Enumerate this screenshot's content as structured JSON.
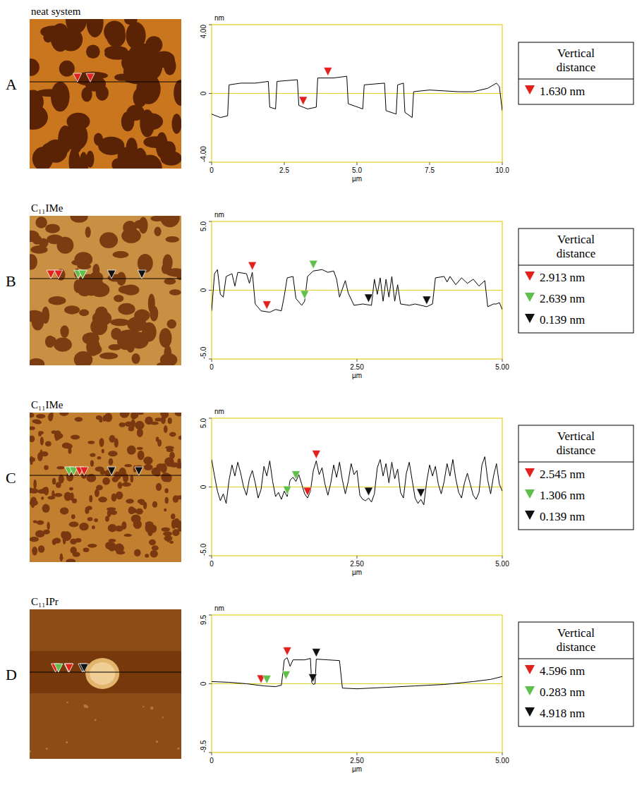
{
  "chart_data": [
    {
      "panel": "A",
      "type": "line",
      "title": "neat system",
      "xlabel": "µm",
      "ylabel": "nm",
      "color": "#000000",
      "grid": false,
      "x": [
        0,
        0.3,
        0.55,
        0.6,
        1.0,
        1.5,
        1.95,
        2.0,
        2.2,
        2.25,
        2.95,
        3.0,
        3.3,
        3.6,
        3.65,
        4.2,
        4.65,
        4.7,
        5.2,
        5.25,
        5.95,
        6.0,
        6.35,
        6.4,
        6.6,
        6.65,
        6.9,
        6.95,
        7.5,
        8.5,
        9.0,
        9.5,
        9.8,
        9.9,
        10
      ],
      "values": [
        -1.2,
        -1.4,
        -1.3,
        0.5,
        0.6,
        0.6,
        0.7,
        -0.8,
        -0.9,
        0.7,
        0.8,
        -0.7,
        -0.9,
        -0.8,
        0.9,
        0.9,
        1.0,
        -0.6,
        -0.9,
        0.5,
        0.6,
        -1.0,
        -1.2,
        0.5,
        0.6,
        -1.1,
        -1.4,
        0.1,
        0.2,
        0.1,
        0.1,
        0.3,
        0.6,
        0.4,
        -1.0
      ],
      "xlim": [
        0,
        10
      ],
      "xticks": [
        0,
        2.5,
        {
          "value": 5,
          "label": "5.0"
        },
        {
          "value": 7.5,
          "label": "7.5"
        },
        {
          "value": 10,
          "label": "10.0"
        }
      ],
      "ylim": [
        -4,
        4
      ],
      "yticks": [
        {
          "value": -4,
          "label": "-4.00"
        },
        0,
        {
          "value": 4,
          "label": "4.00"
        }
      ],
      "markers": [
        {
          "x": 3.15,
          "y": -0.8,
          "color": "#e3211c"
        },
        {
          "x": 4.0,
          "y": 0.9,
          "color": "#e3211c"
        }
      ],
      "table": {
        "title": "Vertical distance",
        "rows": [
          {
            "color": "#e3211c",
            "value": 1.63,
            "label": "1.630 nm"
          }
        ]
      }
    },
    {
      "panel": "B",
      "type": "line",
      "title": "C₁₁IMe",
      "xlabel": "µm",
      "ylabel": "nm",
      "color": "#000000",
      "grid": false,
      "x": [
        0,
        0.05,
        0.1,
        0.15,
        0.2,
        0.25,
        0.35,
        0.4,
        0.45,
        0.6,
        0.65,
        0.7,
        0.75,
        0.85,
        1.0,
        1.1,
        1.2,
        1.25,
        1.3,
        1.4,
        1.45,
        1.55,
        1.6,
        1.65,
        1.75,
        1.9,
        2.0,
        2.1,
        2.15,
        2.2,
        2.3,
        2.35,
        2.45,
        2.6,
        2.75,
        2.8,
        2.85,
        2.9,
        2.95,
        3.0,
        3.05,
        3.1,
        3.15,
        3.2,
        3.25,
        3.4,
        3.5,
        3.6,
        3.7,
        3.8,
        3.85,
        4.0,
        4.05,
        4.1,
        4.2,
        4.3,
        4.4,
        4.5,
        4.6,
        4.7,
        4.75,
        4.85,
        4.9,
        4.95,
        5.0
      ],
      "values": [
        -1.5,
        1.2,
        1.5,
        -0.3,
        -0.5,
        1.0,
        1.2,
        0.3,
        1.3,
        1.2,
        0.5,
        1.3,
        -1.0,
        -1.5,
        -1.6,
        -1.4,
        -1.5,
        -0.4,
        0.9,
        1.0,
        -0.6,
        -1.1,
        -0.8,
        1.0,
        1.4,
        1.5,
        1.3,
        1.4,
        0.8,
        -0.5,
        0.7,
        -0.2,
        -1.1,
        -1.0,
        -1.1,
        0.8,
        -0.3,
        0.9,
        -0.8,
        0.8,
        -0.5,
        1.0,
        -0.8,
        0.4,
        -1.0,
        -1.1,
        -1.0,
        -1.1,
        -1.2,
        -1.0,
        0.9,
        1.0,
        0.6,
        1.0,
        0.4,
        0.9,
        0.5,
        0.8,
        0.3,
        0.7,
        -1.2,
        -1.0,
        -1.0,
        -0.9,
        -1.4
      ],
      "xlim": [
        0,
        5
      ],
      "xticks": [
        0,
        {
          "value": 2.5,
          "label": "2.50"
        },
        {
          "value": 5,
          "label": "5.00"
        }
      ],
      "ylim": [
        -5,
        5
      ],
      "yticks": [
        {
          "value": -5,
          "label": "-5.0"
        },
        0,
        {
          "value": 5,
          "label": "5.0"
        }
      ],
      "markers": [
        {
          "x": 0.7,
          "y": 1.3,
          "color": "#e3211c"
        },
        {
          "x": 0.95,
          "y": -1.55,
          "color": "#e3211c"
        },
        {
          "x": 1.6,
          "y": -0.8,
          "color": "#5fbf4a"
        },
        {
          "x": 1.75,
          "y": 1.4,
          "color": "#5fbf4a"
        },
        {
          "x": 2.7,
          "y": -1.05,
          "color": "#111111"
        },
        {
          "x": 3.7,
          "y": -1.2,
          "color": "#111111"
        }
      ],
      "table": {
        "title": "Vertical distance",
        "rows": [
          {
            "color": "#e3211c",
            "value": 2.913,
            "label": "2.913 nm"
          },
          {
            "color": "#5fbf4a",
            "value": 2.639,
            "label": "2.639 nm"
          },
          {
            "color": "#111111",
            "value": 0.139,
            "label": "0.139 nm"
          }
        ]
      }
    },
    {
      "panel": "C",
      "type": "line",
      "title": "C₁₁IMe",
      "xlabel": "µm",
      "ylabel": "nm",
      "color": "#000000",
      "grid": false,
      "x": [
        0,
        0.05,
        0.1,
        0.15,
        0.2,
        0.25,
        0.3,
        0.35,
        0.4,
        0.45,
        0.5,
        0.55,
        0.6,
        0.65,
        0.7,
        0.75,
        0.8,
        0.85,
        0.9,
        0.95,
        1.0,
        1.05,
        1.1,
        1.15,
        1.2,
        1.25,
        1.3,
        1.35,
        1.4,
        1.45,
        1.5,
        1.55,
        1.6,
        1.65,
        1.7,
        1.75,
        1.8,
        1.85,
        1.9,
        1.95,
        2.0,
        2.05,
        2.1,
        2.15,
        2.2,
        2.25,
        2.3,
        2.35,
        2.4,
        2.45,
        2.5,
        2.55,
        2.6,
        2.65,
        2.7,
        2.75,
        2.8,
        2.85,
        2.9,
        2.95,
        3.0,
        3.05,
        3.1,
        3.15,
        3.2,
        3.25,
        3.3,
        3.35,
        3.4,
        3.45,
        3.5,
        3.55,
        3.6,
        3.65,
        3.7,
        3.75,
        3.8,
        3.85,
        3.9,
        3.95,
        4.0,
        4.05,
        4.1,
        4.15,
        4.2,
        4.25,
        4.3,
        4.35,
        4.4,
        4.45,
        4.5,
        4.55,
        4.6,
        4.65,
        4.7,
        4.75,
        4.8,
        4.85,
        4.9,
        4.95,
        5.0
      ],
      "values": [
        2.0,
        0.8,
        -0.3,
        -1.0,
        -0.5,
        -1.2,
        0.5,
        1.6,
        0.8,
        1.8,
        1.0,
        0.0,
        -0.6,
        0.6,
        1.2,
        0.3,
        -0.8,
        -0.2,
        1.5,
        0.8,
        1.9,
        0.4,
        -0.7,
        -0.4,
        -0.9,
        -0.3,
        -0.7,
        0.5,
        0.7,
        0.4,
        0.9,
        0.2,
        -0.5,
        -0.8,
        -0.3,
        1.2,
        1.9,
        0.9,
        1.4,
        0.2,
        -0.6,
        0.3,
        1.6,
        0.7,
        1.8,
        0.5,
        -0.5,
        0.4,
        1.7,
        0.9,
        1.2,
        -0.6,
        -0.9,
        -1.0,
        -0.8,
        -1.1,
        -0.5,
        1.4,
        2.0,
        0.8,
        1.7,
        0.3,
        1.8,
        0.6,
        1.3,
        -0.4,
        -0.8,
        1.0,
        1.8,
        0.5,
        -0.8,
        -1.2,
        -0.9,
        -1.3,
        0.4,
        1.6,
        0.8,
        1.5,
        0.2,
        -0.5,
        0.4,
        1.7,
        0.8,
        2.0,
        0.6,
        -0.4,
        -0.8,
        0.3,
        1.0,
        0.2,
        -0.6,
        -0.9,
        -0.4,
        1.6,
        2.2,
        0.5,
        -0.5,
        0.8,
        1.7,
        0.2,
        -0.3
      ],
      "xlim": [
        0,
        5
      ],
      "xticks": [
        0,
        {
          "value": 2.5,
          "label": "2.50"
        },
        {
          "value": 5,
          "label": "5.00"
        }
      ],
      "ylim": [
        -5,
        5
      ],
      "yticks": [
        {
          "value": -5,
          "label": "-5.0"
        },
        0,
        {
          "value": 5,
          "label": "5.0"
        }
      ],
      "markers": [
        {
          "x": 1.3,
          "y": -0.7,
          "color": "#5fbf4a"
        },
        {
          "x": 1.45,
          "y": 0.4,
          "color": "#5fbf4a"
        },
        {
          "x": 1.65,
          "y": -0.8,
          "color": "#e3211c"
        },
        {
          "x": 1.8,
          "y": 1.9,
          "color": "#e3211c"
        },
        {
          "x": 2.7,
          "y": -0.8,
          "color": "#111111"
        },
        {
          "x": 3.6,
          "y": -0.9,
          "color": "#111111"
        }
      ],
      "table": {
        "title": "Vertical distance",
        "rows": [
          {
            "color": "#e3211c",
            "value": 2.545,
            "label": "2.545 nm"
          },
          {
            "color": "#5fbf4a",
            "value": 1.306,
            "label": "1.306 nm"
          },
          {
            "color": "#111111",
            "value": 0.139,
            "label": "0.139 nm"
          }
        ]
      }
    },
    {
      "panel": "D",
      "type": "line",
      "title": "C₁₁IPr",
      "xlabel": "µm",
      "ylabel": "nm",
      "color": "#000000",
      "grid": false,
      "x": [
        0,
        0.3,
        0.6,
        0.9,
        1.1,
        1.2,
        1.25,
        1.3,
        1.35,
        1.4,
        1.6,
        1.7,
        1.72,
        1.75,
        1.78,
        1.8,
        2.0,
        2.2,
        2.25,
        2.5,
        3.0,
        3.5,
        4.0,
        4.5,
        4.8,
        5.0
      ],
      "values": [
        0.3,
        0.2,
        0.0,
        -0.3,
        -0.4,
        -0.2,
        3.3,
        3.6,
        2.4,
        3.3,
        3.3,
        3.5,
        0.2,
        -0.1,
        0.0,
        3.4,
        3.3,
        3.2,
        -0.6,
        -0.7,
        -0.5,
        -0.3,
        -0.1,
        0.3,
        0.6,
        1.0
      ],
      "xlim": [
        0,
        5
      ],
      "xticks": [
        0,
        {
          "value": 2.5,
          "label": "2.50"
        },
        {
          "value": 5,
          "label": "5.00"
        }
      ],
      "ylim": [
        -9.5,
        9.5
      ],
      "yticks": [
        -9.5,
        0,
        9.5
      ],
      "markers": [
        {
          "x": 0.85,
          "y": -0.25,
          "color": "#e3211c"
        },
        {
          "x": 0.95,
          "y": -0.3,
          "color": "#5fbf4a"
        },
        {
          "x": 1.28,
          "y": 0.3,
          "color": "#5fbf4a"
        },
        {
          "x": 1.3,
          "y": 3.6,
          "color": "#e3211c"
        },
        {
          "x": 1.74,
          "y": -0.1,
          "color": "#111111"
        },
        {
          "x": 1.8,
          "y": 3.4,
          "color": "#111111"
        }
      ],
      "table": {
        "title": "Vertical distance",
        "rows": [
          {
            "color": "#e3211c",
            "value": 4.596,
            "label": "4.596 nm"
          },
          {
            "color": "#5fbf4a",
            "value": 0.283,
            "label": "0.283 nm"
          },
          {
            "color": "#111111",
            "value": 4.918,
            "label": "4.918 nm"
          }
        ]
      }
    }
  ]
}
